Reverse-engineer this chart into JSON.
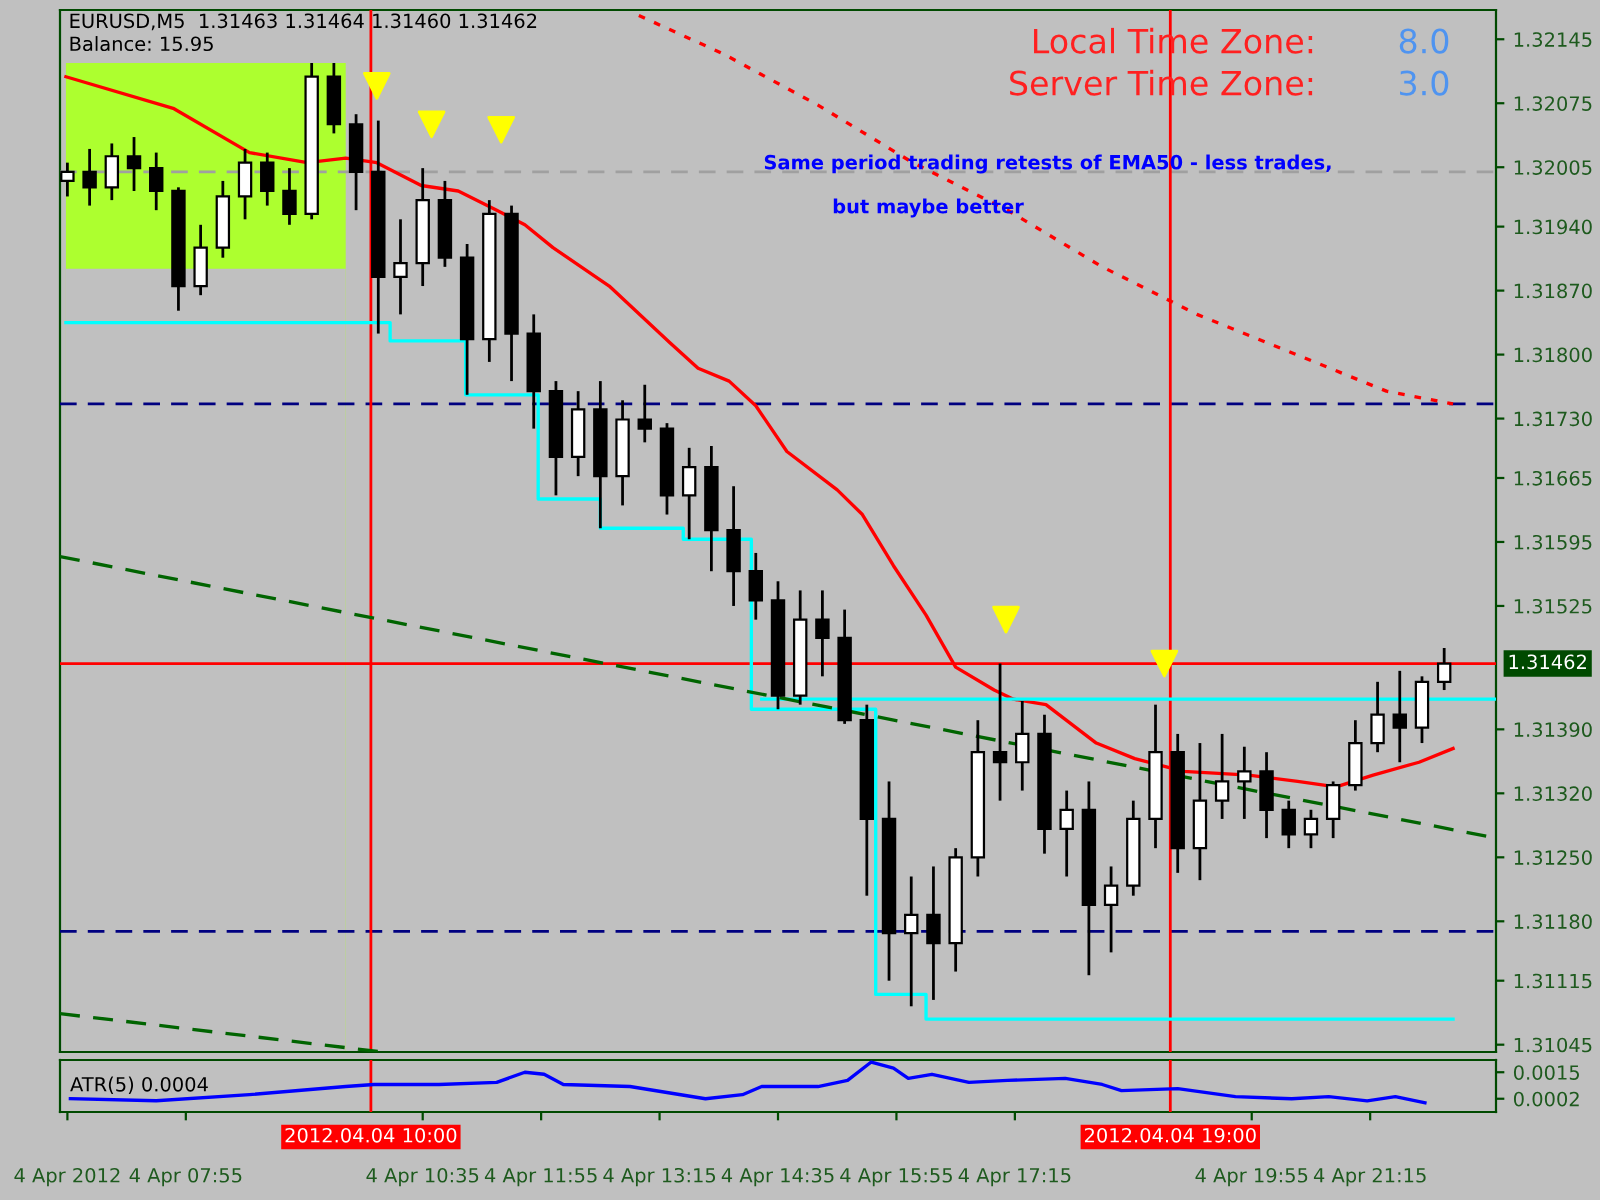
{
  "chart_data": [
    {
      "type": "candlestick",
      "title": "EURUSD,M5  1.31463 1.31464 1.31460 1.31462",
      "subtitle": "Balance: 15.95",
      "annotations": [
        "Local Time Zone:",
        "8.0",
        "Server Time Zone:",
        "3.0",
        "Same period trading retests of EMA50 - less trades,",
        "but maybe better"
      ],
      "x": [
        "2012-04-04T06:35",
        "2012-04-04T06:50",
        "2012-04-04T07:05",
        "2012-04-04T07:20",
        "2012-04-04T07:35",
        "2012-04-04T07:50",
        "2012-04-04T08:05",
        "2012-04-04T08:20",
        "2012-04-04T08:35",
        "2012-04-04T08:50",
        "2012-04-04T09:05",
        "2012-04-04T09:20",
        "2012-04-04T09:35",
        "2012-04-04T09:50",
        "2012-04-04T10:05",
        "2012-04-04T10:20",
        "2012-04-04T10:35",
        "2012-04-04T10:50",
        "2012-04-04T11:05",
        "2012-04-04T11:20",
        "2012-04-04T11:35",
        "2012-04-04T11:50",
        "2012-04-04T12:05",
        "2012-04-04T12:20",
        "2012-04-04T12:35",
        "2012-04-04T12:50",
        "2012-04-04T13:05",
        "2012-04-04T13:20",
        "2012-04-04T13:35",
        "2012-04-04T13:50",
        "2012-04-04T14:05",
        "2012-04-04T14:20",
        "2012-04-04T14:35",
        "2012-04-04T14:50",
        "2012-04-04T15:05",
        "2012-04-04T15:20",
        "2012-04-04T15:35",
        "2012-04-04T15:50",
        "2012-04-04T16:05",
        "2012-04-04T16:20",
        "2012-04-04T16:35",
        "2012-04-04T16:50",
        "2012-04-04T17:05",
        "2012-04-04T17:20",
        "2012-04-04T17:35",
        "2012-04-04T17:50",
        "2012-04-04T18:05",
        "2012-04-04T18:20",
        "2012-04-04T18:35",
        "2012-04-04T18:50",
        "2012-04-04T19:05",
        "2012-04-04T19:20",
        "2012-04-04T19:35",
        "2012-04-04T19:50",
        "2012-04-04T20:05",
        "2012-04-04T20:20",
        "2012-04-04T20:35",
        "2012-04-04T20:50",
        "2012-04-04T21:05",
        "2012-04-04T21:20",
        "2012-04-04T21:35",
        "2012-04-04T21:50",
        "2012-04-04T22:05"
      ],
      "ohlc": [
        [
          1.3199,
          1.3201,
          1.31973,
          1.32
        ],
        [
          1.32,
          1.32025,
          1.31963,
          1.31983
        ],
        [
          1.31983,
          1.32031,
          1.31969,
          1.32017
        ],
        [
          1.32017,
          1.32038,
          1.31979,
          1.32004
        ],
        [
          1.32004,
          1.32021,
          1.31958,
          1.31979
        ],
        [
          1.31979,
          1.31983,
          1.31848,
          1.31875
        ],
        [
          1.31875,
          1.31942,
          1.31865,
          1.31917
        ],
        [
          1.31917,
          1.3199,
          1.31906,
          1.31973
        ],
        [
          1.31973,
          1.32025,
          1.31948,
          1.3201
        ],
        [
          1.3201,
          1.32021,
          1.31963,
          1.31979
        ],
        [
          1.31979,
          1.32004,
          1.31942,
          1.31954
        ],
        [
          1.31954,
          1.32119,
          1.31948,
          1.32104
        ],
        [
          1.32104,
          1.32119,
          1.32042,
          1.32052
        ],
        [
          1.32052,
          1.32063,
          1.31958,
          1.32
        ],
        [
          1.32,
          1.32056,
          1.31823,
          1.31885
        ],
        [
          1.31885,
          1.31948,
          1.31844,
          1.319
        ],
        [
          1.319,
          1.32004,
          1.31875,
          1.31969
        ],
        [
          1.31969,
          1.3199,
          1.31896,
          1.31906
        ],
        [
          1.31906,
          1.31921,
          1.31756,
          1.31817
        ],
        [
          1.31817,
          1.31969,
          1.31792,
          1.31954
        ],
        [
          1.31954,
          1.31963,
          1.31771,
          1.31823
        ],
        [
          1.31823,
          1.31844,
          1.31719,
          1.3176
        ],
        [
          1.3176,
          1.31771,
          1.31646,
          1.31688
        ],
        [
          1.31688,
          1.3176,
          1.31667,
          1.3174
        ],
        [
          1.3174,
          1.31771,
          1.3161,
          1.31667
        ],
        [
          1.31667,
          1.3175,
          1.31635,
          1.31729
        ],
        [
          1.31729,
          1.31767,
          1.31704,
          1.31719
        ],
        [
          1.31719,
          1.31725,
          1.31625,
          1.31646
        ],
        [
          1.31646,
          1.31698,
          1.31598,
          1.31677
        ],
        [
          1.31677,
          1.317,
          1.31563,
          1.31608
        ],
        [
          1.31608,
          1.31656,
          1.31525,
          1.31563
        ],
        [
          1.31563,
          1.31583,
          1.3151,
          1.31531
        ],
        [
          1.31531,
          1.31552,
          1.31412,
          1.31427
        ],
        [
          1.31427,
          1.31542,
          1.31417,
          1.3151
        ],
        [
          1.3151,
          1.31542,
          1.31448,
          1.3149
        ],
        [
          1.3149,
          1.31521,
          1.31396,
          1.314
        ],
        [
          1.314,
          1.31417,
          1.31208,
          1.31292
        ],
        [
          1.31292,
          1.31333,
          1.31115,
          1.31167
        ],
        [
          1.31167,
          1.31229,
          1.31087,
          1.31187
        ],
        [
          1.31187,
          1.3124,
          1.31094,
          1.31156
        ],
        [
          1.31156,
          1.3126,
          1.31125,
          1.3125
        ],
        [
          1.3125,
          1.314,
          1.31229,
          1.31365
        ],
        [
          1.31365,
          1.31462,
          1.31312,
          1.31354
        ],
        [
          1.31354,
          1.31421,
          1.31323,
          1.31385
        ],
        [
          1.31385,
          1.31406,
          1.31254,
          1.31281
        ],
        [
          1.31281,
          1.31323,
          1.31229,
          1.31302
        ],
        [
          1.31302,
          1.31333,
          1.31121,
          1.31198
        ],
        [
          1.31198,
          1.3124,
          1.31146,
          1.31219
        ],
        [
          1.31219,
          1.31312,
          1.31208,
          1.31292
        ],
        [
          1.31292,
          1.31417,
          1.3126,
          1.31365
        ],
        [
          1.31365,
          1.31385,
          1.31233,
          1.3126
        ],
        [
          1.3126,
          1.31375,
          1.31225,
          1.31312
        ],
        [
          1.31312,
          1.31385,
          1.31292,
          1.31333
        ],
        [
          1.31333,
          1.31371,
          1.31292,
          1.31344
        ],
        [
          1.31344,
          1.31365,
          1.31271,
          1.31302
        ],
        [
          1.31302,
          1.31312,
          1.3126,
          1.31275
        ],
        [
          1.31275,
          1.31302,
          1.3126,
          1.31292
        ],
        [
          1.31292,
          1.31333,
          1.31271,
          1.31329
        ],
        [
          1.31329,
          1.314,
          1.31323,
          1.31375
        ],
        [
          1.31375,
          1.31442,
          1.31365,
          1.31406
        ],
        [
          1.31406,
          1.31454,
          1.31354,
          1.31392
        ],
        [
          1.31392,
          1.31448,
          1.31375,
          1.31442
        ],
        [
          1.31442,
          1.31479,
          1.31433,
          1.31462
        ]
      ],
      "series": [
        {
          "type": "area",
          "color": "#adff2f",
          "x": [
            "2012-04-04T06:34",
            "2012-04-04T09:43"
          ],
          "values": [
            1.32119,
            1.32119
          ]
        },
        {
          "type": "area",
          "color": "#c0c0c0",
          "x": [
            "2012-04-04T06:34",
            "2012-04-04T09:43"
          ],
          "values": [
            1.31894,
            1.31894
          ]
        },
        {
          "type": "line",
          "color": "#ff0000",
          "x": [
            "2012-04-04T06:34",
            "2012-04-04T07:47",
            "2012-04-04T08:38",
            "2012-04-04T09:17",
            "2012-04-04T09:43",
            "2012-04-04T10:04",
            "2012-04-04T10:34",
            "2012-04-04T10:59",
            "2012-04-04T11:25",
            "2012-04-04T11:44",
            "2012-04-04T12:03",
            "2012-04-04T12:41",
            "2012-04-04T13:22",
            "2012-04-04T13:41",
            "2012-04-04T14:02",
            "2012-04-04T14:20",
            "2012-04-04T14:41",
            "2012-04-04T15:15",
            "2012-04-04T15:32",
            "2012-04-04T15:53",
            "2012-04-04T16:15",
            "2012-04-04T16:35",
            "2012-04-04T17:01",
            "2012-04-04T17:14",
            "2012-04-04T17:36",
            "2012-04-04T18:10",
            "2012-04-04T18:36",
            "2012-04-04T19:09",
            "2012-04-04T19:53",
            "2012-04-04T20:26",
            "2012-04-04T20:52",
            "2012-04-04T21:17",
            "2012-04-04T21:48",
            "2012-04-04T22:11"
          ],
          "values": [
            1.32104,
            1.32069,
            1.32021,
            1.3201,
            1.32015,
            1.3201,
            1.31985,
            1.31979,
            1.31958,
            1.31942,
            1.31917,
            1.31875,
            1.31813,
            1.31785,
            1.31771,
            1.31744,
            1.31694,
            1.31652,
            1.31625,
            1.31569,
            1.31515,
            1.31458,
            1.31433,
            1.31423,
            1.31417,
            1.31375,
            1.31358,
            1.31344,
            1.3134,
            1.31333,
            1.31327,
            1.3134,
            1.31354,
            1.31369
          ]
        },
        {
          "type": "line",
          "color": "#ff0000",
          "line_style": "dotted",
          "x": [
            "2012-04-04T13:01",
            "2012-04-04T13:58",
            "2012-04-04T15:02",
            "2012-04-04T16:06",
            "2012-04-04T17:10",
            "2012-04-04T18:14",
            "2012-04-04T19:18",
            "2012-04-04T20:22",
            "2012-04-04T21:26",
            "2012-04-04T22:11"
          ],
          "values": [
            1.32171,
            1.32129,
            1.32073,
            1.3201,
            1.31958,
            1.31896,
            1.31844,
            1.31802,
            1.3176,
            1.31746
          ]
        },
        {
          "type": "step",
          "color": "#00ffff",
          "x": [
            "2012-04-04T06:34",
            "2012-04-04T10:13",
            "2012-04-04T11:04",
            "2012-04-04T11:53",
            "2012-04-04T12:35",
            "2012-04-04T13:31",
            "2012-04-04T14:17",
            "2012-04-04T15:41",
            "2012-04-04T16:15",
            "2012-04-04T22:11"
          ],
          "values": [
            1.31835,
            1.31815,
            1.31756,
            1.31642,
            1.3161,
            1.31598,
            1.31412,
            1.311,
            1.31073,
            1.31073
          ]
        },
        {
          "type": "line",
          "color": "#00ffff",
          "x": [
            "2012-04-04T14:24",
            "2012-04-04T22:40"
          ],
          "values": [
            1.31423,
            1.31423
          ]
        },
        {
          "type": "line",
          "color": "#006400",
          "line_style": "dashed",
          "x": [
            "2012-04-04T06:30",
            "2012-04-04T22:40"
          ],
          "values": [
            1.31579,
            1.31271
          ]
        },
        {
          "type": "line",
          "color": "#006400",
          "line_style": "dashed",
          "x": [
            "2012-04-04T06:30",
            "2012-04-04T10:08"
          ],
          "values": [
            1.31079,
            1.31037
          ]
        },
        {
          "type": "scatter",
          "color": "#ffff00",
          "marker": "triangle",
          "x": [
            "2012-04-04T10:04",
            "2012-04-04T10:41",
            "2012-04-04T11:28",
            "2012-04-04T17:09",
            "2012-04-04T18:56"
          ],
          "values": [
            1.32094,
            1.32052,
            1.32046,
            1.3151,
            1.31462
          ]
        }
      ],
      "ref_lines": [
        {
          "axis": "y",
          "value": 1.31462,
          "label": "1.31462",
          "color": "#ff0000"
        },
        {
          "axis": "y",
          "value": 1.31746,
          "color": "#000080",
          "line_style": "dashed"
        },
        {
          "axis": "y",
          "value": 1.31169,
          "color": "#000080",
          "line_style": "dashed"
        },
        {
          "axis": "y",
          "value": 1.32,
          "color": "#a0a0a0",
          "line_style": "dashed"
        },
        {
          "axis": "x",
          "value": "2012-04-04T10:00",
          "color": "#ff0000"
        },
        {
          "axis": "x",
          "value": "2012-04-04T19:00",
          "color": "#ff0000"
        }
      ],
      "xlim": [
        "2012-04-04T06:30",
        "2012-04-04T22:40"
      ],
      "ylim": [
        1.31037,
        1.32177
      ],
      "yticks": [
        1.32145,
        1.32075,
        1.32005,
        {
          "value": 1.3194,
          "label": "1.31940"
        },
        {
          "value": 1.3187,
          "label": "1.31870"
        },
        {
          "value": 1.318,
          "label": "1.31800"
        },
        {
          "value": 1.3173,
          "label": "1.31730"
        },
        1.31665,
        1.31595,
        1.31525,
        {
          "value": 1.3139,
          "label": "1.31390"
        },
        {
          "value": 1.3132,
          "label": "1.31320"
        },
        {
          "value": 1.3125,
          "label": "1.31250"
        },
        {
          "value": 1.3118,
          "label": "1.31180"
        },
        1.31115,
        1.31045
      ],
      "tick_labels": "y"
    },
    {
      "type": "line",
      "annotations": [
        "ATR(5) 0.0004"
      ],
      "series": [
        {
          "type": "line",
          "color": "#0000ff",
          "x": [
            "2012-04-04T06:37",
            "2012-04-04T07:35",
            "2012-04-04T08:38",
            "2012-04-04T09:43",
            "2012-04-04T10:02",
            "2012-04-04T10:46",
            "2012-04-04T11:25",
            "2012-04-04T11:44",
            "2012-04-04T11:57",
            "2012-04-04T12:10",
            "2012-04-04T12:55",
            "2012-04-04T13:46",
            "2012-04-04T14:11",
            "2012-04-04T14:24",
            "2012-04-04T15:02",
            "2012-04-04T15:22",
            "2012-04-04T15:38",
            "2012-04-04T15:53",
            "2012-04-04T16:03",
            "2012-04-04T16:19",
            "2012-04-04T16:44",
            "2012-04-04T17:10",
            "2012-04-04T17:49",
            "2012-04-04T18:14",
            "2012-04-04T18:27",
            "2012-04-04T19:05",
            "2012-04-04T19:44",
            "2012-04-04T20:22",
            "2012-04-04T20:47",
            "2012-04-04T21:13",
            "2012-04-04T21:32",
            "2012-04-04T21:52"
          ],
          "values": [
            0.0002,
            0.0001,
            0.0004,
            0.0008,
            0.0009,
            0.0009,
            0.001,
            0.0015,
            0.0014,
            0.0009,
            0.0008,
            0.0002,
            0.0004,
            0.0008,
            0.0008,
            0.0011,
            0.002,
            0.0017,
            0.0012,
            0.0014,
            0.001,
            0.0011,
            0.0012,
            0.0009,
            0.0006,
            0.0007,
            0.0003,
            0.0002,
            0.0003,
            0.0001,
            0.0003,
            0.0
          ]
        }
      ],
      "ref_lines": [
        {
          "axis": "x",
          "value": "2012-04-04T10:00",
          "label": "2012.04.04 10:00",
          "color": "#ff0000"
        },
        {
          "axis": "x",
          "value": "2012-04-04T19:00",
          "label": "2012.04.04 19:00",
          "color": "#ff0000"
        }
      ],
      "xlim": [
        "2012-04-04T06:30",
        "2012-04-04T22:40"
      ],
      "ylim": [
        -0.00045,
        0.0021
      ],
      "xticks": [
        {
          "value": "2012-04-04T06:35",
          "label": "4 Apr 2012"
        },
        {
          "value": "2012-04-04T07:55",
          "label": "4 Apr 07:55"
        },
        {
          "value": "2012-04-04T10:35",
          "label": "4 Apr 10:35"
        },
        {
          "value": "2012-04-04T11:55",
          "label": "4 Apr 11:55"
        },
        {
          "value": "2012-04-04T13:15",
          "label": "4 Apr 13:15"
        },
        {
          "value": "2012-04-04T14:35",
          "label": "4 Apr 14:35"
        },
        {
          "value": "2012-04-04T15:55",
          "label": "4 Apr 15:55"
        },
        {
          "value": "2012-04-04T17:15",
          "label": "4 Apr 17:15"
        },
        {
          "value": "2012-04-04T19:55",
          "label": "4 Apr 19:55"
        },
        {
          "value": "2012-04-04T21:15",
          "label": "4 Apr 21:15"
        }
      ],
      "yticks": [
        0.0015,
        0.0002
      ]
    }
  ]
}
